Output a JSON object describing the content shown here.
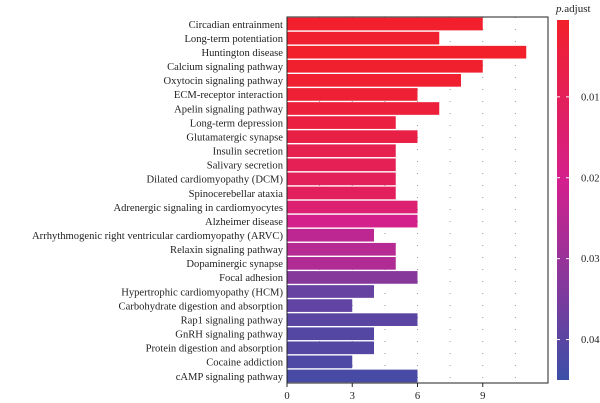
{
  "chart_data": {
    "type": "bar",
    "orientation": "horizontal",
    "categories": [
      "Circadian entrainment",
      "Long-term potentiation",
      "Huntington disease",
      "Calcium signaling pathway",
      "Oxytocin signaling pathway",
      "ECM-receptor interaction",
      "Apelin signaling pathway",
      "Long-term depression",
      "Glutamatergic synapse",
      "Insulin secretion",
      "Salivary secretion",
      "Dilated cardiomyopathy (DCM)",
      "Spinocerebellar ataxia",
      "Adrenergic signaling in cardiomyocytes",
      "Alzheimer disease",
      "Arrhythmogenic right ventricular cardiomyopathy (ARVC)",
      "Relaxin signaling pathway",
      "Dopaminergic synapse",
      "Focal adhesion",
      "Hypertrophic cardiomyopathy (HCM)",
      "Carbohydrate digestion and absorption",
      "Rap1 signaling pathway",
      "GnRH signaling pathway",
      "Protein digestion and absorption",
      "Cocaine addiction",
      "cAMP signaling pathway"
    ],
    "values": [
      9,
      7,
      11,
      9,
      8,
      6,
      7,
      5,
      6,
      5,
      5,
      5,
      5,
      6,
      6,
      4,
      5,
      5,
      6,
      4,
      3,
      6,
      4,
      4,
      3,
      6
    ],
    "p_adjust": [
      0.001,
      0.002,
      0.0005,
      0.0015,
      0.002,
      0.003,
      0.004,
      0.005,
      0.006,
      0.008,
      0.009,
      0.01,
      0.011,
      0.015,
      0.02,
      0.024,
      0.025,
      0.026,
      0.033,
      0.038,
      0.039,
      0.04,
      0.041,
      0.041,
      0.042,
      0.043
    ],
    "xlim": [
      0,
      12
    ],
    "xticks": [
      "0",
      "3",
      "6",
      "9"
    ],
    "xtick_values": [
      0,
      3,
      6,
      9
    ],
    "legend": {
      "title_italic": "p.",
      "title_rest": "adjust",
      "ticks": [
        "0.01",
        "0.02",
        "0.03",
        "0.04"
      ],
      "tick_values": [
        0.01,
        0.02,
        0.03,
        0.04
      ],
      "range": [
        0.0005,
        0.045
      ],
      "color_low": "#f2202a",
      "color_mid": "#d3208e",
      "color_high": "#3b4fa8",
      "placement": "right"
    },
    "grid": true
  }
}
